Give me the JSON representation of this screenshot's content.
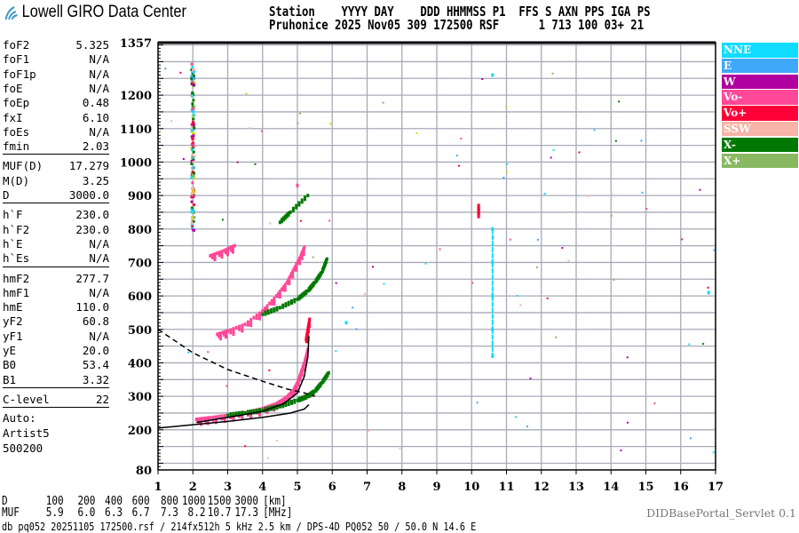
{
  "header": {
    "logo_text": "Lowell GIRO Data Center",
    "line1": "Station    YYYY DAY    DDD HHMMSS P1  FFS S AXN PPS IGA PS",
    "line2": "Pruhonice 2025 Nov05 309 172500 RSF      1 713 100 03+ 21"
  },
  "params": [
    [
      {
        "k": "foF2",
        "v": "5.325"
      },
      {
        "k": "foF1",
        "v": "N/A"
      },
      {
        "k": "foF1p",
        "v": "N/A"
      },
      {
        "k": "foE",
        "v": "N/A"
      },
      {
        "k": "foEp",
        "v": "0.48"
      },
      {
        "k": "fxI",
        "v": "6.10"
      },
      {
        "k": "foEs",
        "v": "N/A"
      },
      {
        "k": "fmin",
        "v": "2.03"
      }
    ],
    [
      {
        "k": "MUF(D)",
        "v": "17.279"
      },
      {
        "k": "M(D)",
        "v": "3.25"
      },
      {
        "k": "D",
        "v": "3000.0"
      }
    ],
    [
      {
        "k": "h`F",
        "v": "230.0"
      },
      {
        "k": "h`F2",
        "v": "230.0"
      },
      {
        "k": "h`E",
        "v": "N/A"
      },
      {
        "k": "h`Es",
        "v": "N/A"
      }
    ],
    [
      {
        "k": "hmF2",
        "v": "277.7"
      },
      {
        "k": "hmF1",
        "v": "N/A"
      },
      {
        "k": "hmE",
        "v": "110.0"
      },
      {
        "k": "yF2",
        "v": "60.8"
      },
      {
        "k": "yF1",
        "v": "N/A"
      },
      {
        "k": "yE",
        "v": "20.0"
      },
      {
        "k": "B0",
        "v": "53.4"
      },
      {
        "k": "B1",
        "v": "3.32"
      }
    ],
    [
      {
        "k": "C-level",
        "v": "22"
      }
    ]
  ],
  "autoscaler": [
    "Auto:",
    "Artist5",
    "500200"
  ],
  "legend": [
    {
      "label": "NNE",
      "color": "#10dcff"
    },
    {
      "label": "E",
      "color": "#40a8f8"
    },
    {
      "label": "W",
      "color": "#b000a0"
    },
    {
      "label": "Vo-",
      "color": "#ff4898"
    },
    {
      "label": "Vo+",
      "color": "#ff0038"
    },
    {
      "label": "SSW",
      "color": "#f8b4a8"
    },
    {
      "label": "X-",
      "color": "#007800"
    },
    {
      "label": "X+",
      "color": "#88b860"
    }
  ],
  "dist_row": {
    "label": "D",
    "values": [
      "100",
      "200",
      "400",
      "600",
      "800",
      "1000",
      "1500",
      "3000"
    ],
    "unit": "[km]"
  },
  "muf_row": {
    "label": "MUF",
    "values": [
      "5.9",
      "6.0",
      "6.3",
      "6.7",
      "7.3",
      "8.2",
      "10.7",
      "17.3"
    ],
    "unit": "[MHz]"
  },
  "servlet": "DIDBasePortal_Servlet 0.1",
  "footer": "db pq052 20251105 172500.rsf / 214fx512h 5 kHz 2.5 km / DPS-4D PQ052 50 / 50.0 N 14.6 E",
  "chart_data": {
    "type": "scatter",
    "xlim": [
      1,
      17
    ],
    "ylim": [
      80,
      1357
    ],
    "x_ticks": [
      1,
      2,
      3,
      4,
      5,
      6,
      7,
      8,
      9,
      10,
      11,
      12,
      13,
      14,
      15,
      16,
      17
    ],
    "y_ticks": [
      80,
      200,
      300,
      400,
      500,
      600,
      700,
      800,
      900,
      1000,
      1100,
      1200,
      1357
    ],
    "grid": true,
    "legend_position": "right",
    "series": [
      {
        "name": "Vo-",
        "color": "#ff4898",
        "points": [
          [
            2.1,
            231
          ],
          [
            2.5,
            236
          ],
          [
            3.0,
            243
          ],
          [
            3.5,
            251
          ],
          [
            4.0,
            263
          ],
          [
            4.4,
            278
          ],
          [
            4.7,
            298
          ],
          [
            4.9,
            320
          ],
          [
            5.0,
            340
          ],
          [
            5.1,
            370
          ],
          [
            5.2,
            400
          ],
          [
            5.3,
            440
          ],
          [
            2.7,
            485
          ],
          [
            3.0,
            495
          ],
          [
            3.5,
            515
          ],
          [
            4.0,
            555
          ],
          [
            4.4,
            600
          ],
          [
            4.7,
            640
          ],
          [
            4.9,
            680
          ],
          [
            5.1,
            720
          ],
          [
            5.2,
            745
          ],
          [
            4.8,
            850
          ],
          [
            5.0,
            930
          ],
          [
            2.5,
            720
          ],
          [
            2.9,
            735
          ],
          [
            3.2,
            750
          ]
        ]
      },
      {
        "name": "Vo+",
        "color": "#ff0038",
        "points": [
          [
            5.25,
            470
          ],
          [
            5.3,
            500
          ],
          [
            5.35,
            530
          ],
          [
            10.2,
            870
          ],
          [
            10.2,
            850
          ]
        ]
      },
      {
        "name": "X-",
        "color": "#007800",
        "points": [
          [
            3.0,
            243
          ],
          [
            3.5,
            250
          ],
          [
            4.0,
            258
          ],
          [
            4.5,
            270
          ],
          [
            5.0,
            288
          ],
          [
            5.3,
            300
          ],
          [
            5.5,
            315
          ],
          [
            5.7,
            340
          ],
          [
            5.9,
            370
          ],
          [
            4.0,
            545
          ],
          [
            4.5,
            565
          ],
          [
            5.0,
            590
          ],
          [
            5.3,
            615
          ],
          [
            5.5,
            640
          ],
          [
            5.7,
            670
          ],
          [
            5.85,
            710
          ],
          [
            4.5,
            820
          ],
          [
            4.8,
            850
          ],
          [
            5.3,
            900
          ]
        ]
      },
      {
        "name": "NNE",
        "color": "#10dcff",
        "points": [
          [
            10.6,
            420
          ],
          [
            10.6,
            500
          ],
          [
            10.6,
            600
          ],
          [
            10.6,
            700
          ],
          [
            10.6,
            800
          ],
          [
            10.6,
            1260
          ],
          [
            6.4,
            520
          ],
          [
            16.8,
            610
          ]
        ]
      }
    ],
    "curves": [
      {
        "style": "solid",
        "points": [
          [
            1,
            205
          ],
          [
            2,
            215
          ],
          [
            3,
            225
          ],
          [
            4,
            237
          ],
          [
            4.8,
            250
          ],
          [
            5.2,
            262
          ],
          [
            5.33,
            275
          ]
        ]
      },
      {
        "style": "solid",
        "points": [
          [
            2.1,
            222
          ],
          [
            3,
            237
          ],
          [
            4,
            255
          ],
          [
            4.6,
            278
          ],
          [
            5.0,
            310
          ],
          [
            5.2,
            360
          ],
          [
            5.3,
            420
          ],
          [
            5.33,
            480
          ]
        ]
      },
      {
        "style": "dashed",
        "points": [
          [
            1,
            500
          ],
          [
            2,
            430
          ],
          [
            3,
            380
          ],
          [
            4,
            345
          ],
          [
            4.7,
            322
          ],
          [
            5.2,
            310
          ],
          [
            5.5,
            300
          ]
        ]
      }
    ]
  }
}
